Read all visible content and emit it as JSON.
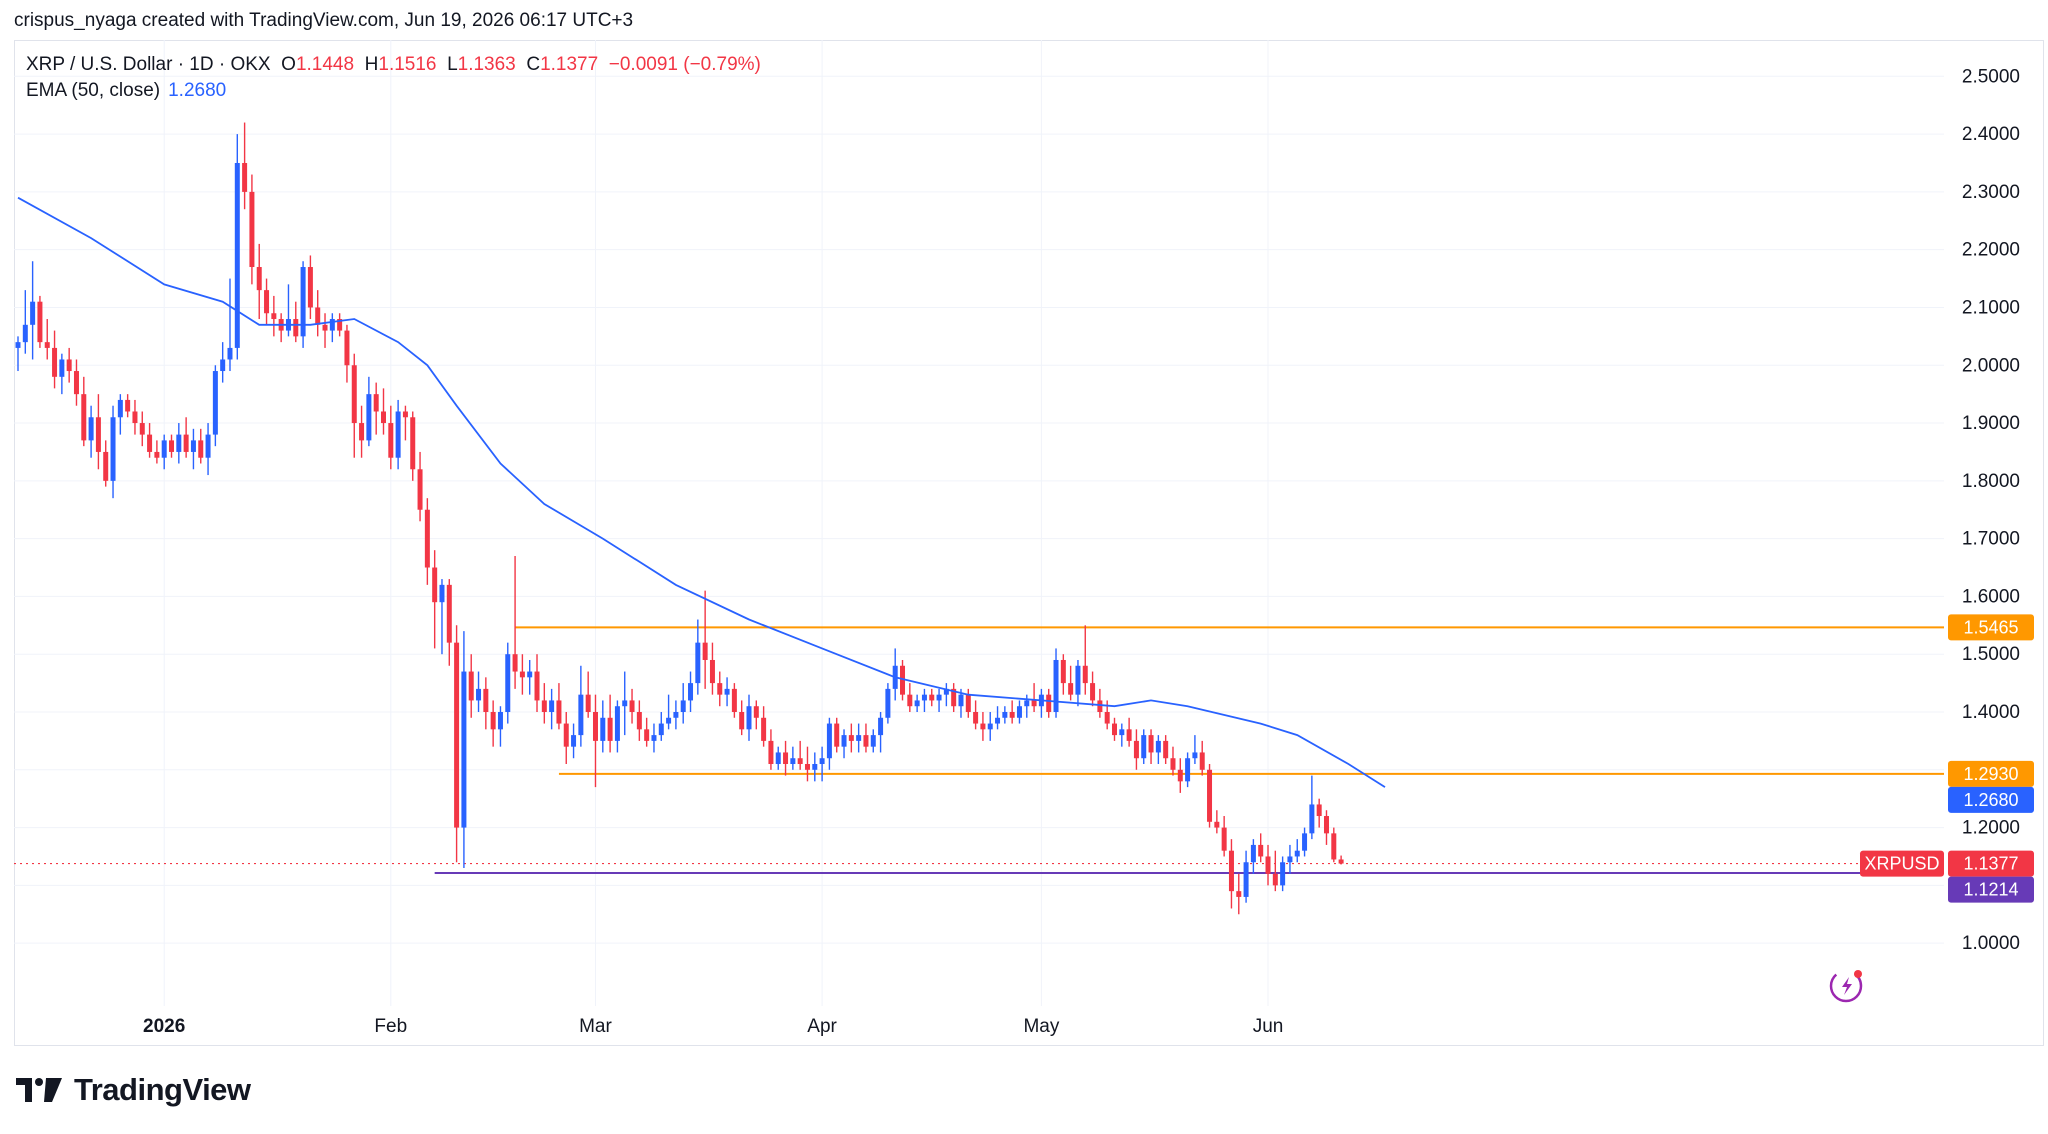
{
  "header": {
    "credit": "crispus_nyaga created with TradingView.com, Jun 19, 2026 06:17 UTC+3"
  },
  "legend": {
    "symbol": "XRP / U.S. Dollar · 1D · OKX",
    "open_label": "O",
    "open": "1.1448",
    "high_label": "H",
    "high": "1.1516",
    "low_label": "L",
    "low": "1.1363",
    "close_label": "C",
    "close": "1.1377",
    "change": "−0.0091 (−0.79%)",
    "ema_label": "EMA (50, close)",
    "ema_value": "1.2680"
  },
  "brand": {
    "name": "TradingView"
  },
  "colors": {
    "up": "#2962ff",
    "down": "#f23645",
    "ema": "#2962ff",
    "level_orange": "#ff9800",
    "level_purple": "#673ab7",
    "grid": "#f0f3fa",
    "text": "#131722"
  },
  "chart_data": {
    "type": "candlestick",
    "title": "XRP / U.S. Dollar · 1D · OKX",
    "y_scale": {
      "min": 0.92,
      "max": 2.55
    },
    "y_ticks": [
      "1.0000",
      "1.1000",
      "1.2000",
      "1.3000",
      "1.4000",
      "1.5000",
      "1.6000",
      "1.7000",
      "1.8000",
      "1.9000",
      "2.0000",
      "2.1000",
      "2.2000",
      "2.3000",
      "2.4000",
      "2.5000"
    ],
    "x_range": [
      "2025-12-12",
      "2026-06-27"
    ],
    "x_ticks": [
      {
        "date": "2026-01-01",
        "label": "2026",
        "bold": true
      },
      {
        "date": "2026-02-01",
        "label": "Feb",
        "bold": false
      },
      {
        "date": "2026-03-01",
        "label": "Mar",
        "bold": false
      },
      {
        "date": "2026-04-01",
        "label": "Apr",
        "bold": false
      },
      {
        "date": "2026-05-01",
        "label": "May",
        "bold": false
      },
      {
        "date": "2026-06-01",
        "label": "Jun",
        "bold": false
      }
    ],
    "start_date": "2025-12-12",
    "candles": [
      [
        2.03,
        2.05,
        1.99,
        2.04
      ],
      [
        2.04,
        2.13,
        2.02,
        2.07
      ],
      [
        2.07,
        2.18,
        2.01,
        2.11
      ],
      [
        2.11,
        2.12,
        2.03,
        2.04
      ],
      [
        2.04,
        2.08,
        2.01,
        2.03
      ],
      [
        2.03,
        2.06,
        1.96,
        1.98
      ],
      [
        1.98,
        2.02,
        1.95,
        2.01
      ],
      [
        2.01,
        2.03,
        1.97,
        1.99
      ],
      [
        1.99,
        2.01,
        1.93,
        1.95
      ],
      [
        1.95,
        1.98,
        1.86,
        1.87
      ],
      [
        1.87,
        1.93,
        1.84,
        1.91
      ],
      [
        1.91,
        1.95,
        1.82,
        1.85
      ],
      [
        1.85,
        1.87,
        1.79,
        1.8
      ],
      [
        1.8,
        1.93,
        1.77,
        1.91
      ],
      [
        1.91,
        1.95,
        1.88,
        1.94
      ],
      [
        1.94,
        1.95,
        1.91,
        1.92
      ],
      [
        1.92,
        1.94,
        1.88,
        1.9
      ],
      [
        1.9,
        1.92,
        1.86,
        1.88
      ],
      [
        1.88,
        1.9,
        1.84,
        1.85
      ],
      [
        1.85,
        1.87,
        1.83,
        1.84
      ],
      [
        1.84,
        1.88,
        1.82,
        1.87
      ],
      [
        1.87,
        1.88,
        1.84,
        1.85
      ],
      [
        1.85,
        1.9,
        1.83,
        1.88
      ],
      [
        1.88,
        1.91,
        1.84,
        1.85
      ],
      [
        1.85,
        1.89,
        1.82,
        1.87
      ],
      [
        1.87,
        1.89,
        1.83,
        1.84
      ],
      [
        1.84,
        1.9,
        1.81,
        1.88
      ],
      [
        1.88,
        2.0,
        1.86,
        1.99
      ],
      [
        1.99,
        2.04,
        1.97,
        2.01
      ],
      [
        2.01,
        2.15,
        1.99,
        2.03
      ],
      [
        2.03,
        2.4,
        2.01,
        2.35
      ],
      [
        2.35,
        2.42,
        2.27,
        2.3
      ],
      [
        2.3,
        2.33,
        2.14,
        2.17
      ],
      [
        2.17,
        2.21,
        2.08,
        2.13
      ],
      [
        2.13,
        2.15,
        2.07,
        2.09
      ],
      [
        2.09,
        2.12,
        2.05,
        2.08
      ],
      [
        2.08,
        2.09,
        2.04,
        2.06
      ],
      [
        2.06,
        2.14,
        2.05,
        2.08
      ],
      [
        2.08,
        2.11,
        2.04,
        2.05
      ],
      [
        2.05,
        2.18,
        2.03,
        2.17
      ],
      [
        2.17,
        2.19,
        2.08,
        2.1
      ],
      [
        2.1,
        2.13,
        2.05,
        2.07
      ],
      [
        2.07,
        2.09,
        2.03,
        2.06
      ],
      [
        2.06,
        2.09,
        2.04,
        2.08
      ],
      [
        2.08,
        2.09,
        2.05,
        2.06
      ],
      [
        2.06,
        2.07,
        1.97,
        2.0
      ],
      [
        2.0,
        2.02,
        1.84,
        1.9
      ],
      [
        1.9,
        1.93,
        1.84,
        1.87
      ],
      [
        1.87,
        1.98,
        1.86,
        1.95
      ],
      [
        1.95,
        1.97,
        1.88,
        1.92
      ],
      [
        1.92,
        1.96,
        1.88,
        1.9
      ],
      [
        1.9,
        1.93,
        1.82,
        1.84
      ],
      [
        1.84,
        1.94,
        1.82,
        1.92
      ],
      [
        1.92,
        1.93,
        1.87,
        1.91
      ],
      [
        1.91,
        1.92,
        1.8,
        1.82
      ],
      [
        1.82,
        1.85,
        1.73,
        1.75
      ],
      [
        1.75,
        1.77,
        1.62,
        1.65
      ],
      [
        1.65,
        1.68,
        1.51,
        1.59
      ],
      [
        1.59,
        1.63,
        1.5,
        1.62
      ],
      [
        1.62,
        1.63,
        1.48,
        1.52
      ],
      [
        1.52,
        1.55,
        1.14,
        1.2
      ],
      [
        1.2,
        1.54,
        1.13,
        1.47
      ],
      [
        1.47,
        1.5,
        1.39,
        1.42
      ],
      [
        1.42,
        1.47,
        1.4,
        1.44
      ],
      [
        1.44,
        1.46,
        1.37,
        1.4
      ],
      [
        1.4,
        1.42,
        1.34,
        1.37
      ],
      [
        1.37,
        1.41,
        1.34,
        1.4
      ],
      [
        1.4,
        1.52,
        1.38,
        1.5
      ],
      [
        1.5,
        1.67,
        1.44,
        1.47
      ],
      [
        1.47,
        1.5,
        1.43,
        1.46
      ],
      [
        1.46,
        1.49,
        1.43,
        1.47
      ],
      [
        1.47,
        1.5,
        1.4,
        1.42
      ],
      [
        1.42,
        1.45,
        1.38,
        1.4
      ],
      [
        1.4,
        1.44,
        1.37,
        1.42
      ],
      [
        1.42,
        1.45,
        1.37,
        1.38
      ],
      [
        1.38,
        1.4,
        1.31,
        1.34
      ],
      [
        1.34,
        1.38,
        1.32,
        1.36
      ],
      [
        1.36,
        1.48,
        1.34,
        1.43
      ],
      [
        1.43,
        1.47,
        1.39,
        1.4
      ],
      [
        1.4,
        1.43,
        1.27,
        1.35
      ],
      [
        1.35,
        1.42,
        1.33,
        1.39
      ],
      [
        1.39,
        1.43,
        1.33,
        1.35
      ],
      [
        1.35,
        1.42,
        1.33,
        1.41
      ],
      [
        1.41,
        1.47,
        1.36,
        1.42
      ],
      [
        1.42,
        1.44,
        1.38,
        1.4
      ],
      [
        1.4,
        1.42,
        1.35,
        1.37
      ],
      [
        1.37,
        1.39,
        1.34,
        1.35
      ],
      [
        1.35,
        1.38,
        1.33,
        1.36
      ],
      [
        1.36,
        1.4,
        1.35,
        1.38
      ],
      [
        1.38,
        1.43,
        1.37,
        1.39
      ],
      [
        1.39,
        1.42,
        1.37,
        1.4
      ],
      [
        1.4,
        1.45,
        1.38,
        1.42
      ],
      [
        1.42,
        1.47,
        1.4,
        1.45
      ],
      [
        1.45,
        1.56,
        1.43,
        1.52
      ],
      [
        1.52,
        1.61,
        1.44,
        1.49
      ],
      [
        1.49,
        1.52,
        1.43,
        1.45
      ],
      [
        1.45,
        1.47,
        1.41,
        1.43
      ],
      [
        1.43,
        1.46,
        1.41,
        1.44
      ],
      [
        1.44,
        1.45,
        1.39,
        1.4
      ],
      [
        1.4,
        1.42,
        1.36,
        1.37
      ],
      [
        1.37,
        1.43,
        1.35,
        1.41
      ],
      [
        1.41,
        1.42,
        1.37,
        1.39
      ],
      [
        1.39,
        1.41,
        1.34,
        1.35
      ],
      [
        1.35,
        1.37,
        1.3,
        1.31
      ],
      [
        1.31,
        1.34,
        1.3,
        1.33
      ],
      [
        1.33,
        1.35,
        1.29,
        1.31
      ],
      [
        1.31,
        1.34,
        1.3,
        1.32
      ],
      [
        1.32,
        1.35,
        1.3,
        1.31
      ],
      [
        1.31,
        1.34,
        1.28,
        1.3
      ],
      [
        1.3,
        1.33,
        1.28,
        1.31
      ],
      [
        1.31,
        1.34,
        1.28,
        1.32
      ],
      [
        1.32,
        1.39,
        1.3,
        1.38
      ],
      [
        1.38,
        1.39,
        1.33,
        1.34
      ],
      [
        1.34,
        1.37,
        1.32,
        1.36
      ],
      [
        1.36,
        1.38,
        1.33,
        1.35
      ],
      [
        1.35,
        1.38,
        1.33,
        1.36
      ],
      [
        1.36,
        1.38,
        1.33,
        1.34
      ],
      [
        1.34,
        1.37,
        1.33,
        1.36
      ],
      [
        1.36,
        1.4,
        1.33,
        1.39
      ],
      [
        1.39,
        1.45,
        1.38,
        1.44
      ],
      [
        1.44,
        1.51,
        1.42,
        1.48
      ],
      [
        1.48,
        1.49,
        1.42,
        1.43
      ],
      [
        1.43,
        1.45,
        1.4,
        1.41
      ],
      [
        1.41,
        1.43,
        1.4,
        1.42
      ],
      [
        1.42,
        1.44,
        1.4,
        1.43
      ],
      [
        1.43,
        1.44,
        1.41,
        1.42
      ],
      [
        1.42,
        1.44,
        1.4,
        1.43
      ],
      [
        1.43,
        1.45,
        1.41,
        1.44
      ],
      [
        1.44,
        1.45,
        1.4,
        1.41
      ],
      [
        1.41,
        1.44,
        1.39,
        1.43
      ],
      [
        1.43,
        1.44,
        1.39,
        1.4
      ],
      [
        1.4,
        1.42,
        1.37,
        1.38
      ],
      [
        1.38,
        1.4,
        1.35,
        1.37
      ],
      [
        1.37,
        1.4,
        1.35,
        1.38
      ],
      [
        1.38,
        1.41,
        1.37,
        1.39
      ],
      [
        1.39,
        1.41,
        1.38,
        1.4
      ],
      [
        1.4,
        1.42,
        1.38,
        1.39
      ],
      [
        1.39,
        1.42,
        1.38,
        1.41
      ],
      [
        1.41,
        1.43,
        1.39,
        1.42
      ],
      [
        1.42,
        1.45,
        1.4,
        1.41
      ],
      [
        1.41,
        1.44,
        1.39,
        1.43
      ],
      [
        1.43,
        1.44,
        1.39,
        1.4
      ],
      [
        1.4,
        1.51,
        1.39,
        1.49
      ],
      [
        1.49,
        1.5,
        1.43,
        1.45
      ],
      [
        1.45,
        1.48,
        1.42,
        1.43
      ],
      [
        1.43,
        1.49,
        1.41,
        1.48
      ],
      [
        1.48,
        1.55,
        1.43,
        1.45
      ],
      [
        1.45,
        1.47,
        1.41,
        1.42
      ],
      [
        1.42,
        1.44,
        1.39,
        1.4
      ],
      [
        1.4,
        1.42,
        1.37,
        1.38
      ],
      [
        1.38,
        1.39,
        1.35,
        1.36
      ],
      [
        1.36,
        1.38,
        1.34,
        1.37
      ],
      [
        1.37,
        1.39,
        1.34,
        1.35
      ],
      [
        1.35,
        1.37,
        1.3,
        1.32
      ],
      [
        1.32,
        1.37,
        1.31,
        1.36
      ],
      [
        1.36,
        1.37,
        1.31,
        1.33
      ],
      [
        1.33,
        1.36,
        1.31,
        1.35
      ],
      [
        1.35,
        1.36,
        1.31,
        1.32
      ],
      [
        1.32,
        1.34,
        1.29,
        1.3
      ],
      [
        1.3,
        1.32,
        1.26,
        1.28
      ],
      [
        1.28,
        1.33,
        1.27,
        1.32
      ],
      [
        1.32,
        1.36,
        1.31,
        1.33
      ],
      [
        1.33,
        1.35,
        1.29,
        1.3
      ],
      [
        1.3,
        1.31,
        1.2,
        1.21
      ],
      [
        1.21,
        1.23,
        1.19,
        1.2
      ],
      [
        1.2,
        1.22,
        1.15,
        1.16
      ],
      [
        1.16,
        1.18,
        1.06,
        1.09
      ],
      [
        1.09,
        1.12,
        1.05,
        1.08
      ],
      [
        1.08,
        1.16,
        1.07,
        1.14
      ],
      [
        1.14,
        1.18,
        1.12,
        1.17
      ],
      [
        1.17,
        1.19,
        1.14,
        1.15
      ],
      [
        1.15,
        1.17,
        1.1,
        1.12
      ],
      [
        1.12,
        1.16,
        1.09,
        1.1
      ],
      [
        1.1,
        1.15,
        1.09,
        1.14
      ],
      [
        1.14,
        1.17,
        1.12,
        1.15
      ],
      [
        1.15,
        1.18,
        1.14,
        1.16
      ],
      [
        1.16,
        1.2,
        1.15,
        1.19
      ],
      [
        1.19,
        1.29,
        1.18,
        1.24
      ],
      [
        1.24,
        1.25,
        1.2,
        1.22
      ],
      [
        1.22,
        1.23,
        1.17,
        1.19
      ],
      [
        1.19,
        1.2,
        1.14,
        1.1448
      ],
      [
        1.1448,
        1.1516,
        1.1363,
        1.1377
      ]
    ],
    "ema_50": [
      [
        0,
        2.29
      ],
      [
        10,
        2.22
      ],
      [
        20,
        2.14
      ],
      [
        28,
        2.11
      ],
      [
        33,
        2.07
      ],
      [
        40,
        2.07
      ],
      [
        46,
        2.08
      ],
      [
        52,
        2.04
      ],
      [
        56,
        2.0
      ],
      [
        60,
        1.93
      ],
      [
        66,
        1.83
      ],
      [
        72,
        1.76
      ],
      [
        80,
        1.7
      ],
      [
        90,
        1.62
      ],
      [
        100,
        1.56
      ],
      [
        110,
        1.51
      ],
      [
        120,
        1.46
      ],
      [
        130,
        1.43
      ],
      [
        140,
        1.42
      ],
      [
        150,
        1.41
      ],
      [
        155,
        1.42
      ],
      [
        160,
        1.41
      ],
      [
        170,
        1.38
      ],
      [
        175,
        1.36
      ],
      [
        182,
        1.31
      ],
      [
        187,
        1.27
      ]
    ],
    "levels": [
      {
        "value": 1.5465,
        "label": "1.5465",
        "color": "#ff9800",
        "from": 68
      },
      {
        "value": 1.293,
        "label": "1.2930",
        "color": "#ff9800",
        "from": 74
      },
      {
        "value": 1.1214,
        "label": "1.1214",
        "color": "#673ab7",
        "from": 57
      }
    ],
    "price_badges": [
      {
        "value": 1.268,
        "label": "1.2680",
        "color": "#2962ff"
      },
      {
        "value": 1.1377,
        "label": "1.1377",
        "color": "#f23645",
        "symbol": "XRPUSD"
      }
    ]
  }
}
